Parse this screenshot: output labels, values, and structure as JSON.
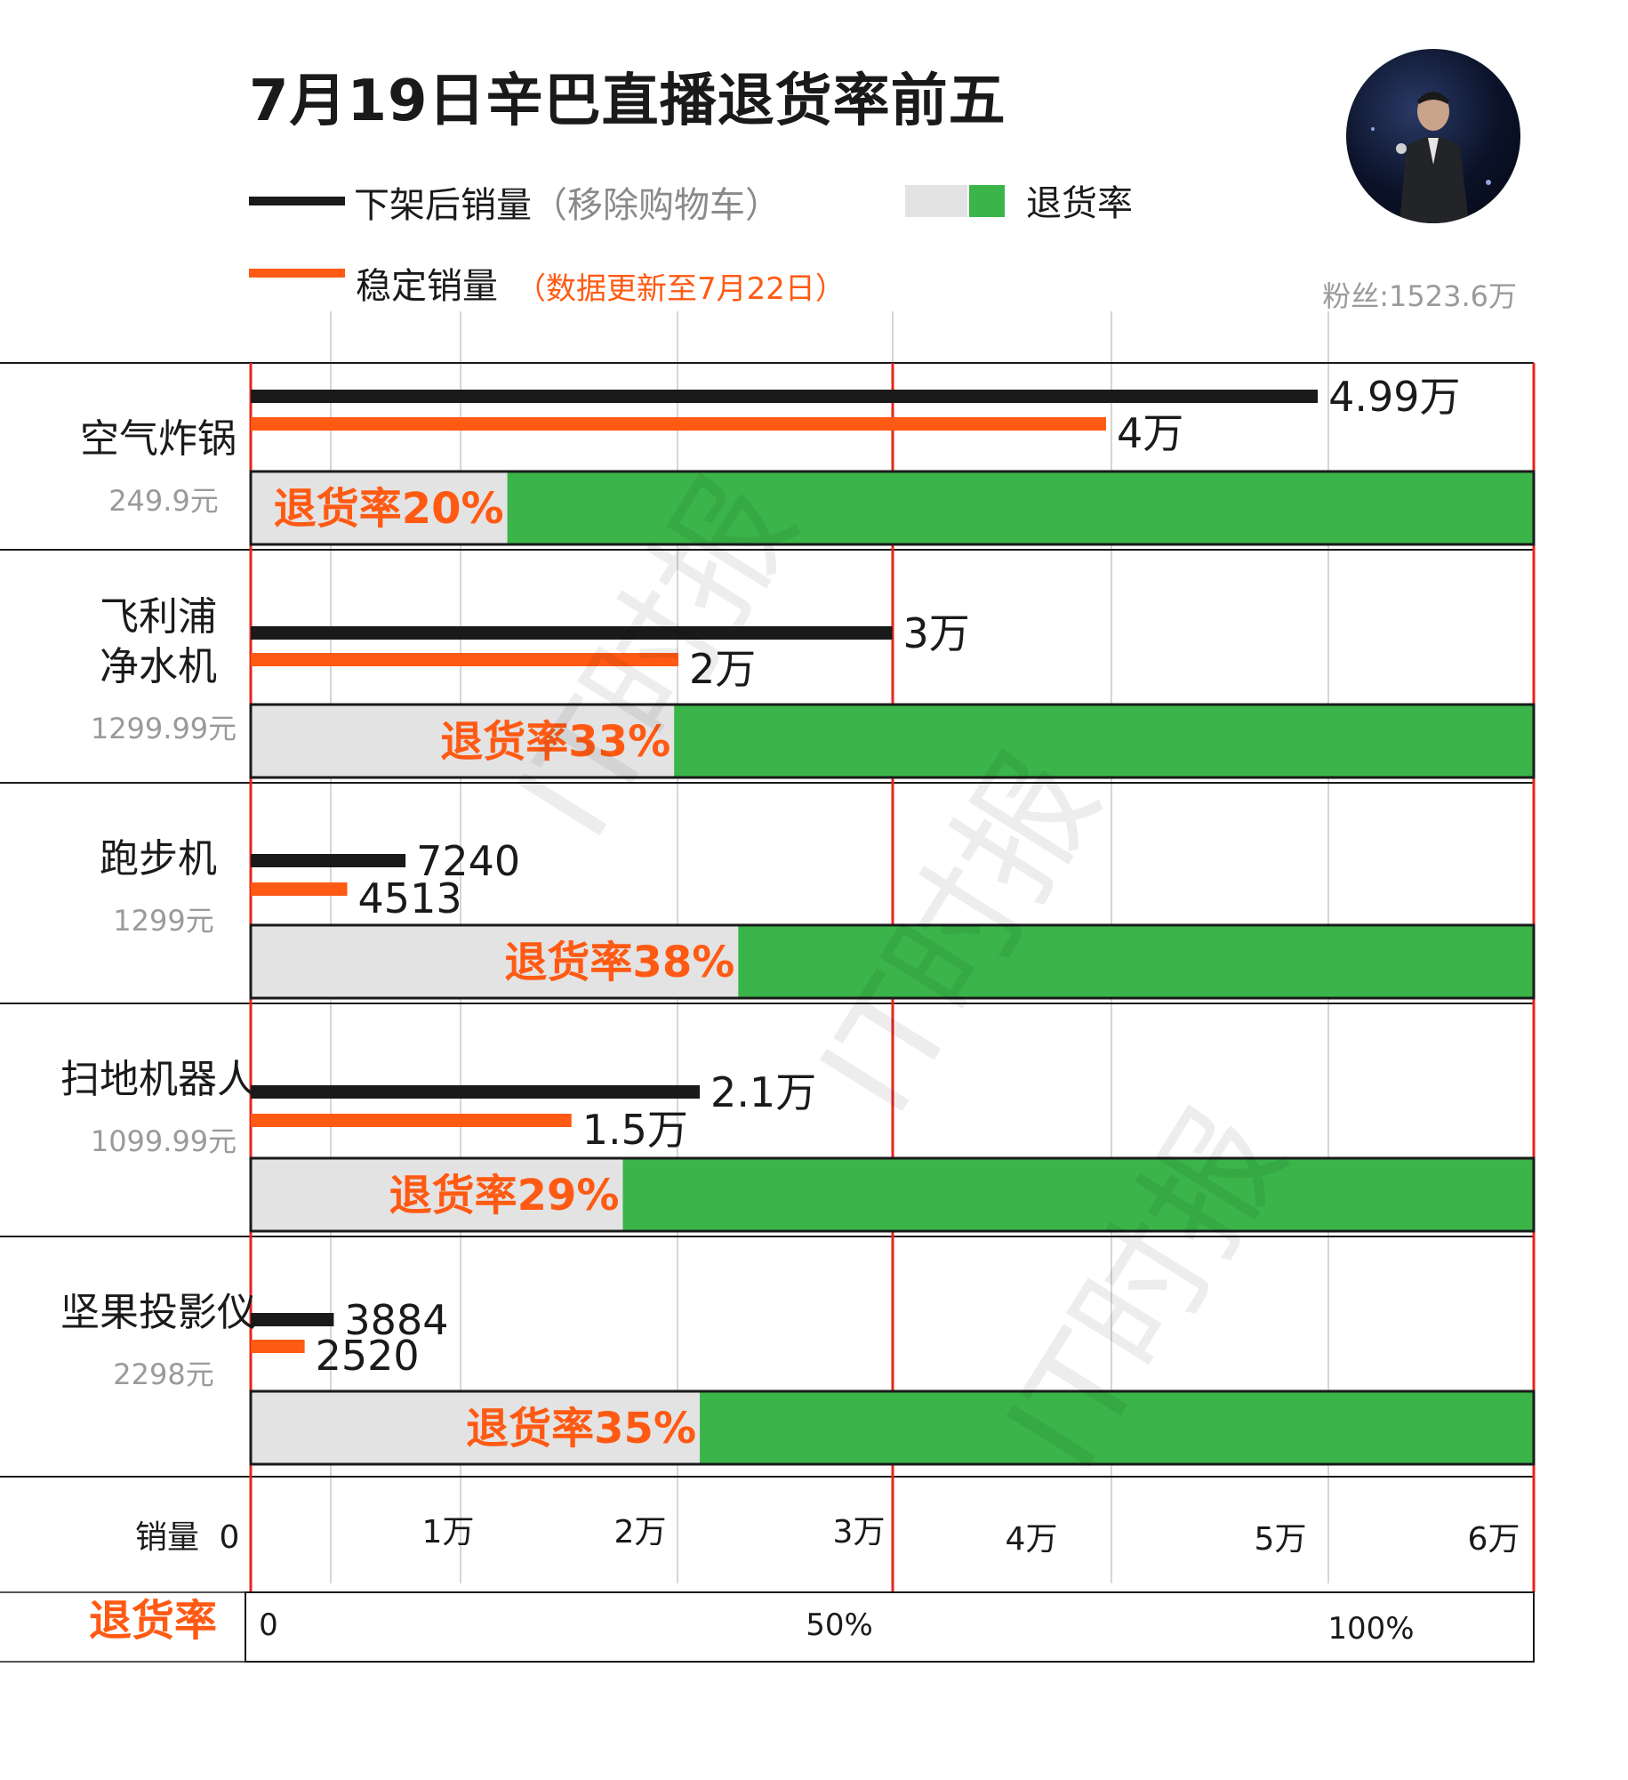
{
  "title": "7月19日辛巴直播退货率前五",
  "legend": {
    "black_label": "下架后销量",
    "black_label_paren": "（移除购物车）",
    "orange_label": "稳定销量",
    "orange_note": "（数据更新至7月22日）",
    "return_rate_label": "退货率"
  },
  "fans": "粉丝:1523.6万",
  "watermark": "IT时报",
  "colors": {
    "black_bar": "#1a1a1a",
    "orange_bar": "#ff5a14",
    "green": "#3bb54a",
    "gray": "#e3e3e3",
    "red_line": "#e8241c",
    "label_orange": "#ff5a14"
  },
  "chart_data": {
    "type": "bar",
    "categories": [
      "空气炸锅",
      "飞利浦净水机",
      "跑步机",
      "扫地机器人",
      "坚果投影仪"
    ],
    "category_lines": [
      [
        "空气炸锅"
      ],
      [
        "飞利浦",
        "净水机"
      ],
      [
        "跑步机"
      ],
      [
        "扫地机器人"
      ],
      [
        "坚果投影仪"
      ]
    ],
    "prices": [
      "249.9元",
      "1299.99元",
      "1299元",
      "1099.99元",
      "2298元"
    ],
    "series": [
      {
        "name": "下架后销量（移除购物车）",
        "values": [
          49900,
          30000,
          7240,
          21000,
          3884
        ],
        "labels": [
          "4.99万",
          "3万",
          "7240",
          "2.1万",
          "3884"
        ]
      },
      {
        "name": "稳定销量",
        "values": [
          40000,
          20000,
          4513,
          15000,
          2520
        ],
        "labels": [
          "4万",
          "2万",
          "4513",
          "1.5万",
          "2520"
        ]
      }
    ],
    "return_rate": {
      "name": "退货率",
      "values": [
        20,
        33,
        38,
        29,
        35
      ],
      "labels": [
        "退货率20%",
        "退货率33%",
        "退货率38%",
        "退货率29%",
        "退货率35%"
      ]
    },
    "sales_axis": {
      "label": "销量",
      "range": [
        0,
        60000
      ],
      "ticks": [
        0,
        10000,
        20000,
        30000,
        40000,
        50000,
        60000
      ],
      "tick_labels": [
        "0",
        "1万",
        "2万",
        "3万",
        "4万",
        "5万",
        "6万"
      ]
    },
    "rate_axis": {
      "label": "退货率",
      "range": [
        0,
        100
      ],
      "ticks": [
        0,
        50,
        100
      ],
      "tick_labels": [
        "0",
        "50%",
        "100%"
      ]
    }
  }
}
